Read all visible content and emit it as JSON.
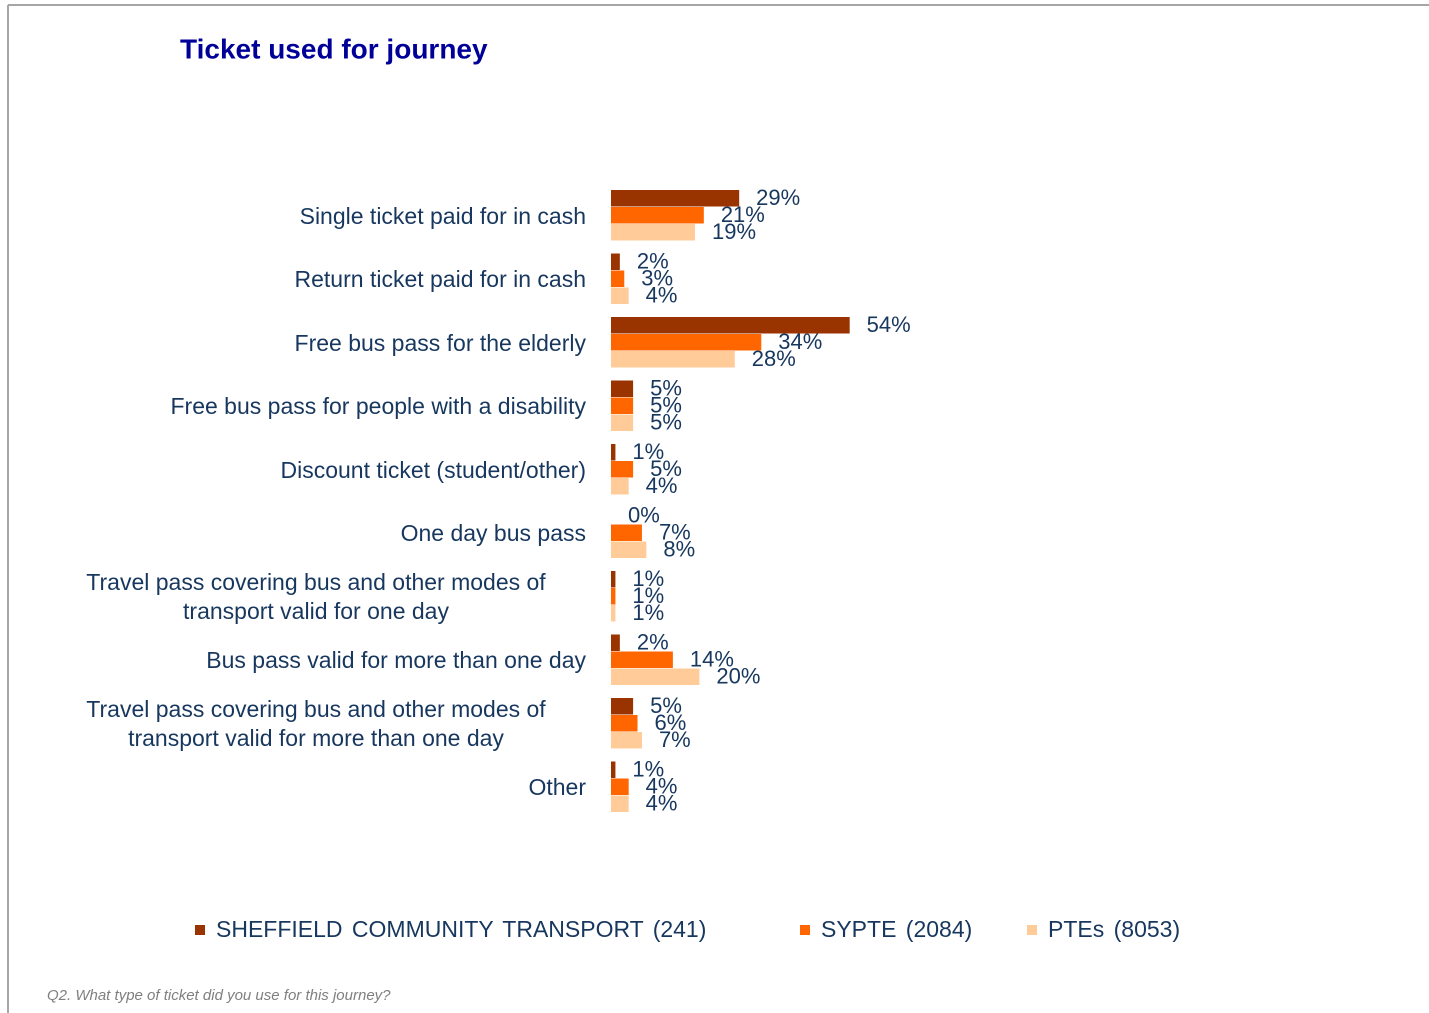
{
  "chart_data": {
    "type": "bar",
    "orientation": "horizontal",
    "title": "Ticket used for journey",
    "categories": [
      "Single ticket paid for in cash",
      "Return ticket paid for in cash",
      "Free bus pass for the elderly",
      "Free bus pass for people with a disability",
      "Discount ticket (student/other)",
      "One day bus pass",
      "Travel pass covering bus and other modes of transport valid for one day",
      "Bus pass valid for more than one day",
      "Travel pass covering bus and other modes of transport valid for more than one day",
      "Other"
    ],
    "series": [
      {
        "name": "SHEFFIELD COMMUNITY TRANSPORT (241)",
        "color": "#993300",
        "values": [
          29,
          2,
          54,
          5,
          1,
          0,
          1,
          2,
          5,
          1
        ],
        "value_labels": [
          "29%",
          "2%",
          "54%",
          "5%",
          "1%",
          "0%",
          "1%",
          "2%",
          "5%",
          "1%"
        ]
      },
      {
        "name": "SYPTE (2084)",
        "color": "#FF6600",
        "values": [
          21,
          3,
          34,
          5,
          5,
          7,
          1,
          14,
          6,
          4
        ],
        "value_labels": [
          "21%",
          "3%",
          "34%",
          "5%",
          "5%",
          "7%",
          "1%",
          "14%",
          "6%",
          "4%"
        ]
      },
      {
        "name": "PTEs (8053)",
        "color": "#FFCC99",
        "values": [
          19,
          4,
          28,
          5,
          4,
          8,
          1,
          20,
          7,
          4
        ],
        "value_labels": [
          "19%",
          "4%",
          "28%",
          "5%",
          "4%",
          "8%",
          "1%",
          "20%",
          "7%",
          "4%"
        ]
      }
    ],
    "legend": "bottom",
    "footnote": "Q2.  What type of ticket did you use for this journey?"
  }
}
